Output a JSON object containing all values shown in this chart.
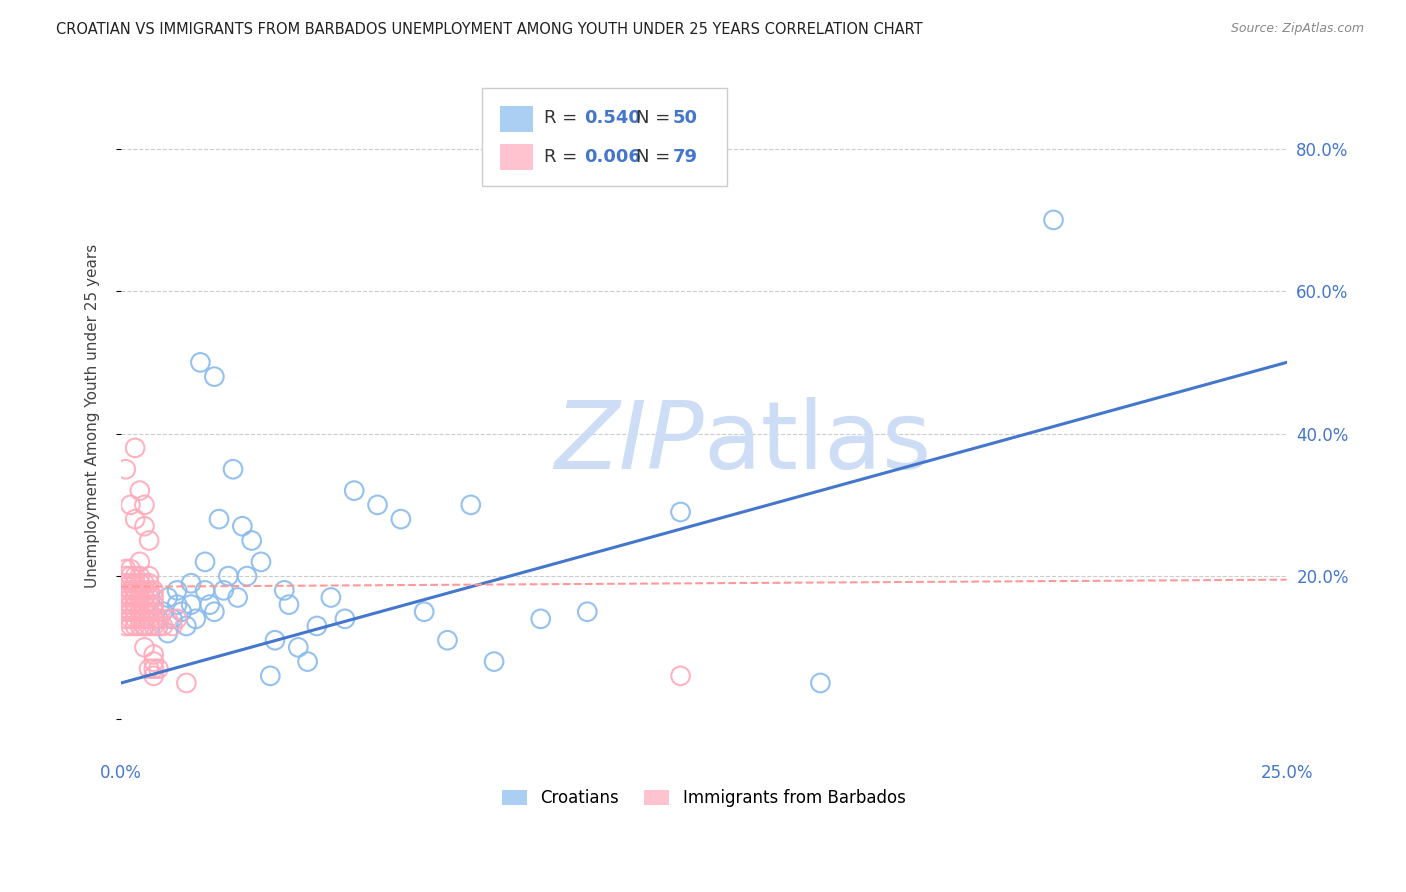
{
  "title": "CROATIAN VS IMMIGRANTS FROM BARBADOS UNEMPLOYMENT AMONG YOUTH UNDER 25 YEARS CORRELATION CHART",
  "source": "Source: ZipAtlas.com",
  "ylabel": "Unemployment Among Youth under 25 years",
  "ytick_vals": [
    0.0,
    0.2,
    0.4,
    0.6,
    0.8
  ],
  "ytick_labels": [
    "",
    "20.0%",
    "40.0%",
    "60.0%",
    "80.0%"
  ],
  "xlim": [
    0.0,
    0.25
  ],
  "ylim": [
    -0.05,
    0.9
  ],
  "blue_color": "#88BBEE",
  "pink_color": "#FFAABB",
  "blue_line_color": "#4477CC",
  "pink_line_color": "#FF9999",
  "tick_color": "#4477CC",
  "watermark_color": "#CCDDF5",
  "background_color": "#FFFFFF",
  "grid_color": "#CCCCCC",
  "blue_scatter_x": [
    0.005,
    0.007,
    0.008,
    0.009,
    0.01,
    0.01,
    0.011,
    0.012,
    0.012,
    0.013,
    0.014,
    0.015,
    0.015,
    0.016,
    0.017,
    0.018,
    0.018,
    0.019,
    0.02,
    0.02,
    0.021,
    0.022,
    0.023,
    0.024,
    0.025,
    0.026,
    0.027,
    0.028,
    0.03,
    0.032,
    0.033,
    0.035,
    0.036,
    0.038,
    0.04,
    0.042,
    0.045,
    0.048,
    0.05,
    0.055,
    0.06,
    0.065,
    0.07,
    0.075,
    0.08,
    0.09,
    0.1,
    0.12,
    0.15,
    0.2
  ],
  "blue_scatter_y": [
    0.13,
    0.16,
    0.14,
    0.15,
    0.12,
    0.17,
    0.14,
    0.16,
    0.18,
    0.15,
    0.13,
    0.16,
    0.19,
    0.14,
    0.5,
    0.22,
    0.18,
    0.16,
    0.48,
    0.15,
    0.28,
    0.18,
    0.2,
    0.35,
    0.17,
    0.27,
    0.2,
    0.25,
    0.22,
    0.06,
    0.11,
    0.18,
    0.16,
    0.1,
    0.08,
    0.13,
    0.17,
    0.14,
    0.32,
    0.3,
    0.28,
    0.15,
    0.11,
    0.3,
    0.08,
    0.14,
    0.15,
    0.29,
    0.05,
    0.7
  ],
  "pink_scatter_x": [
    0.001,
    0.001,
    0.001,
    0.001,
    0.001,
    0.001,
    0.001,
    0.001,
    0.001,
    0.001,
    0.002,
    0.002,
    0.002,
    0.002,
    0.002,
    0.002,
    0.002,
    0.002,
    0.002,
    0.002,
    0.003,
    0.003,
    0.003,
    0.003,
    0.003,
    0.003,
    0.003,
    0.003,
    0.003,
    0.003,
    0.004,
    0.004,
    0.004,
    0.004,
    0.004,
    0.004,
    0.004,
    0.004,
    0.004,
    0.004,
    0.005,
    0.005,
    0.005,
    0.005,
    0.005,
    0.005,
    0.005,
    0.005,
    0.005,
    0.005,
    0.006,
    0.006,
    0.006,
    0.006,
    0.006,
    0.006,
    0.006,
    0.006,
    0.006,
    0.006,
    0.007,
    0.007,
    0.007,
    0.007,
    0.007,
    0.007,
    0.007,
    0.007,
    0.007,
    0.007,
    0.008,
    0.008,
    0.008,
    0.009,
    0.01,
    0.011,
    0.012,
    0.014,
    0.12
  ],
  "pink_scatter_y": [
    0.13,
    0.14,
    0.15,
    0.16,
    0.17,
    0.18,
    0.19,
    0.2,
    0.21,
    0.35,
    0.13,
    0.14,
    0.15,
    0.16,
    0.17,
    0.18,
    0.19,
    0.2,
    0.21,
    0.3,
    0.13,
    0.14,
    0.15,
    0.16,
    0.17,
    0.18,
    0.19,
    0.2,
    0.28,
    0.38,
    0.13,
    0.14,
    0.15,
    0.16,
    0.17,
    0.18,
    0.19,
    0.2,
    0.22,
    0.32,
    0.13,
    0.14,
    0.15,
    0.16,
    0.17,
    0.18,
    0.19,
    0.27,
    0.3,
    0.1,
    0.13,
    0.14,
    0.15,
    0.16,
    0.17,
    0.18,
    0.19,
    0.2,
    0.25,
    0.07,
    0.13,
    0.14,
    0.15,
    0.16,
    0.17,
    0.18,
    0.07,
    0.08,
    0.09,
    0.06,
    0.13,
    0.14,
    0.07,
    0.13,
    0.14,
    0.13,
    0.14,
    0.05,
    0.06
  ],
  "blue_trendline_x": [
    0.0,
    0.25
  ],
  "blue_trendline_y": [
    0.05,
    0.5
  ],
  "pink_trendline_x": [
    0.0,
    0.25
  ],
  "pink_trendline_y": [
    0.185,
    0.195
  ]
}
